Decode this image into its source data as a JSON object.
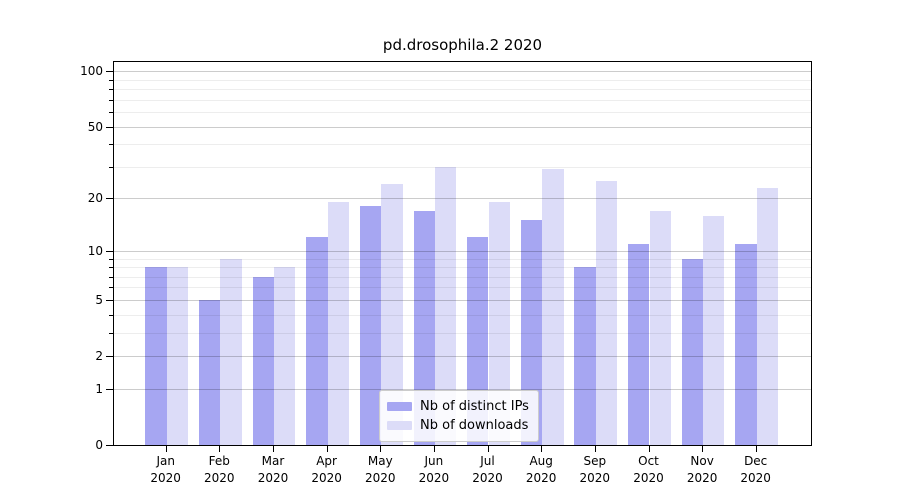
{
  "chart_data": {
    "type": "bar",
    "title": "pd.drosophila.2 2020",
    "scale": "log1p",
    "categories": [
      "Jan 2020",
      "Feb 2020",
      "Mar 2020",
      "Apr 2020",
      "May 2020",
      "Jun 2020",
      "Jul 2020",
      "Aug 2020",
      "Sep 2020",
      "Oct 2020",
      "Nov 2020",
      "Dec 2020"
    ],
    "series": [
      {
        "name": "Nb of distinct IPs",
        "color": "#a6a6f2",
        "values": [
          8,
          5,
          7,
          12,
          18,
          17,
          12,
          15,
          8,
          11,
          9,
          11
        ]
      },
      {
        "name": "Nb of downloads",
        "color": "#dcdcf8",
        "values": [
          8,
          9,
          8,
          19,
          24,
          30,
          19,
          29,
          25,
          17,
          16,
          23
        ]
      }
    ],
    "xlabel": "",
    "ylabel": "",
    "ylim": [
      0,
      112
    ],
    "y_major_ticks": [
      0,
      1,
      2,
      5,
      10,
      20,
      50,
      100
    ],
    "y_minor_ticks": [
      3,
      4,
      6,
      7,
      8,
      9,
      30,
      40,
      60,
      70,
      80,
      90
    ],
    "grid": true,
    "legend_position": "lower center"
  }
}
